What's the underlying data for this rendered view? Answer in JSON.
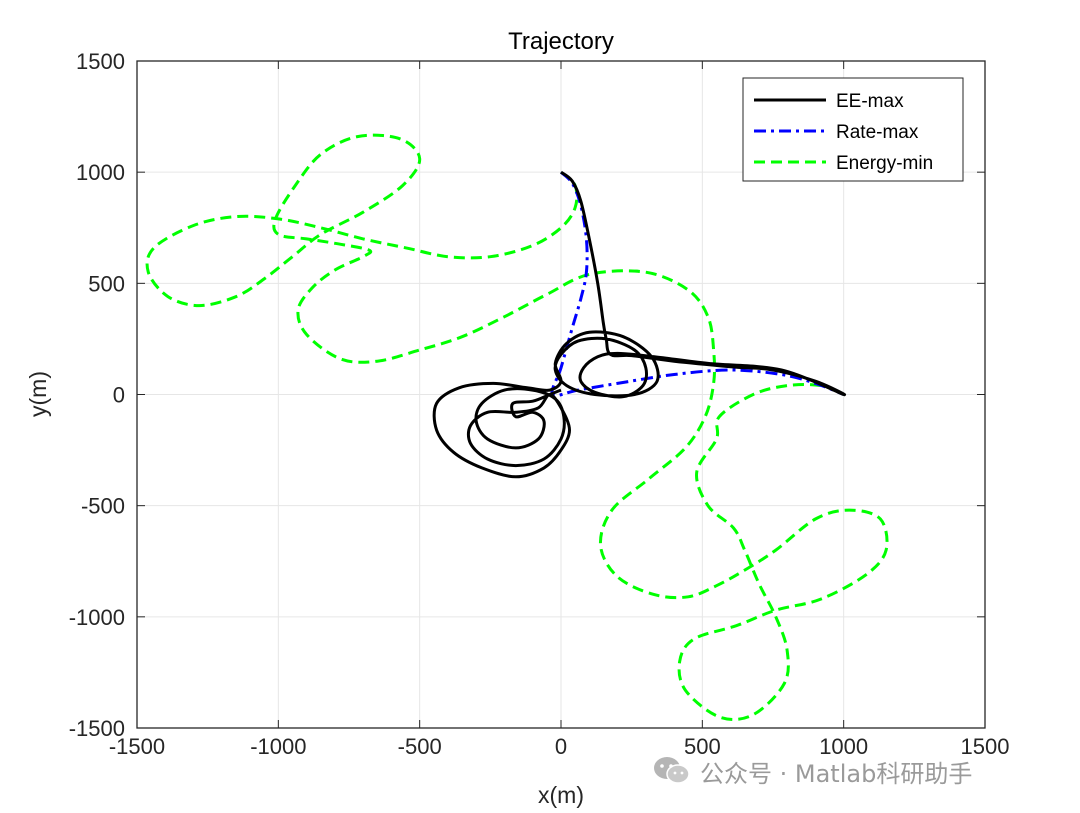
{
  "chart_data": {
    "type": "line",
    "title": "Trajectory",
    "xlabel": "x(m)",
    "ylabel": "y(m)",
    "xlim": [
      -1500,
      1500
    ],
    "ylim": [
      -1500,
      1500
    ],
    "xticks": [
      -1500,
      -1000,
      -500,
      0,
      500,
      1000,
      1500
    ],
    "yticks": [
      -1500,
      -1000,
      -500,
      0,
      500,
      1000,
      1500
    ],
    "grid": true,
    "legend_position": "top-right",
    "series": [
      {
        "name": "EE-max",
        "color": "#000000",
        "style": "solid",
        "points": [
          [
            0,
            1000
          ],
          [
            40,
            960
          ],
          [
            70,
            870
          ],
          [
            100,
            700
          ],
          [
            130,
            500
          ],
          [
            150,
            320
          ],
          [
            160,
            250
          ],
          [
            175,
            180
          ],
          [
            250,
            175
          ],
          [
            400,
            150
          ],
          [
            600,
            125
          ],
          [
            750,
            110
          ],
          [
            900,
            60
          ],
          [
            1000,
            0
          ],
          [
            780,
            110
          ],
          [
            520,
            140
          ],
          [
            330,
            170
          ],
          [
            200,
            185
          ],
          [
            130,
            170
          ],
          [
            80,
            120
          ],
          [
            70,
            60
          ],
          [
            120,
            10
          ],
          [
            220,
            -10
          ],
          [
            290,
            40
          ],
          [
            300,
            120
          ],
          [
            260,
            200
          ],
          [
            160,
            250
          ],
          [
            60,
            240
          ],
          [
            0,
            180
          ],
          [
            -20,
            110
          ],
          [
            20,
            40
          ],
          [
            120,
            0
          ],
          [
            260,
            0
          ],
          [
            340,
            60
          ],
          [
            320,
            170
          ],
          [
            220,
            260
          ],
          [
            100,
            280
          ],
          [
            20,
            230
          ],
          [
            -20,
            140
          ],
          [
            0,
            60
          ],
          [
            -40,
            20
          ],
          [
            -120,
            30
          ],
          [
            -240,
            50
          ],
          [
            -360,
            30
          ],
          [
            -440,
            -40
          ],
          [
            -440,
            -160
          ],
          [
            -380,
            -260
          ],
          [
            -280,
            -330
          ],
          [
            -160,
            -370
          ],
          [
            -60,
            -330
          ],
          [
            0,
            -250
          ],
          [
            30,
            -160
          ],
          [
            0,
            -60
          ],
          [
            -40,
            0
          ],
          [
            -80,
            -60
          ],
          [
            -160,
            -80
          ],
          [
            -260,
            -80
          ],
          [
            -320,
            -140
          ],
          [
            -320,
            -220
          ],
          [
            -260,
            -290
          ],
          [
            -160,
            -320
          ],
          [
            -60,
            -290
          ],
          [
            0,
            -200
          ],
          [
            10,
            -100
          ],
          [
            -20,
            -20
          ],
          [
            -100,
            20
          ],
          [
            -200,
            20
          ],
          [
            -280,
            -40
          ],
          [
            -300,
            -120
          ],
          [
            -260,
            -200
          ],
          [
            -160,
            -240
          ],
          [
            -80,
            -200
          ],
          [
            -60,
            -120
          ],
          [
            -100,
            -80
          ],
          [
            -160,
            -100
          ],
          [
            -170,
            -40
          ],
          [
            -100,
            -30
          ],
          [
            -40,
            0
          ],
          [
            0,
            20
          ]
        ]
      },
      {
        "name": "Rate-max",
        "color": "#0000FF",
        "style": "dashdot",
        "points": [
          [
            0,
            1000
          ],
          [
            40,
            950
          ],
          [
            70,
            850
          ],
          [
            90,
            700
          ],
          [
            90,
            550
          ],
          [
            70,
            430
          ],
          [
            40,
            300
          ],
          [
            0,
            120
          ],
          [
            -30,
            0
          ],
          [
            60,
            20
          ],
          [
            200,
            50
          ],
          [
            400,
            90
          ],
          [
            600,
            110
          ],
          [
            780,
            90
          ],
          [
            900,
            50
          ],
          [
            1000,
            0
          ]
        ]
      },
      {
        "name": "Energy-min",
        "color": "#00FF00",
        "style": "dashed",
        "points": [
          [
            0,
            1000
          ],
          [
            50,
            940
          ],
          [
            50,
            840
          ],
          [
            0,
            750
          ],
          [
            -100,
            670
          ],
          [
            -250,
            620
          ],
          [
            -400,
            620
          ],
          [
            -550,
            660
          ],
          [
            -700,
            700
          ],
          [
            -850,
            750
          ],
          [
            -1000,
            790
          ],
          [
            -1150,
            800
          ],
          [
            -1300,
            760
          ],
          [
            -1440,
            660
          ],
          [
            -1460,
            550
          ],
          [
            -1390,
            440
          ],
          [
            -1280,
            400
          ],
          [
            -1150,
            440
          ],
          [
            -1050,
            520
          ],
          [
            -950,
            620
          ],
          [
            -850,
            720
          ],
          [
            -700,
            820
          ],
          [
            -560,
            940
          ],
          [
            -500,
            1060
          ],
          [
            -570,
            1150
          ],
          [
            -720,
            1160
          ],
          [
            -850,
            1080
          ],
          [
            -940,
            940
          ],
          [
            -1010,
            790
          ],
          [
            -1000,
            720
          ],
          [
            -900,
            700
          ],
          [
            -800,
            680
          ],
          [
            -680,
            650
          ],
          [
            -700,
            620
          ],
          [
            -800,
            560
          ],
          [
            -880,
            480
          ],
          [
            -930,
            380
          ],
          [
            -900,
            270
          ],
          [
            -780,
            160
          ],
          [
            -650,
            150
          ],
          [
            -500,
            200
          ],
          [
            -350,
            260
          ],
          [
            -200,
            350
          ],
          [
            -50,
            450
          ],
          [
            100,
            540
          ],
          [
            300,
            550
          ],
          [
            450,
            470
          ],
          [
            520,
            350
          ],
          [
            540,
            200
          ],
          [
            540,
            50
          ],
          [
            510,
            -100
          ],
          [
            440,
            -240
          ],
          [
            310,
            -380
          ],
          [
            180,
            -520
          ],
          [
            140,
            -680
          ],
          [
            200,
            -820
          ],
          [
            330,
            -900
          ],
          [
            450,
            -910
          ],
          [
            550,
            -860
          ],
          [
            650,
            -790
          ],
          [
            760,
            -700
          ],
          [
            900,
            -560
          ],
          [
            1020,
            -520
          ],
          [
            1130,
            -560
          ],
          [
            1150,
            -700
          ],
          [
            1080,
            -810
          ],
          [
            920,
            -920
          ],
          [
            760,
            -970
          ],
          [
            620,
            -1040
          ],
          [
            470,
            -1100
          ],
          [
            420,
            -1200
          ],
          [
            440,
            -1330
          ],
          [
            560,
            -1450
          ],
          [
            680,
            -1440
          ],
          [
            790,
            -1300
          ],
          [
            800,
            -1150
          ],
          [
            760,
            -1000
          ],
          [
            700,
            -850
          ],
          [
            650,
            -700
          ],
          [
            610,
            -600
          ],
          [
            520,
            -500
          ],
          [
            480,
            -350
          ],
          [
            550,
            -200
          ],
          [
            560,
            -100
          ],
          [
            680,
            0
          ],
          [
            800,
            40
          ],
          [
            920,
            40
          ],
          [
            1000,
            0
          ]
        ]
      }
    ]
  },
  "watermark": {
    "text": "公众号 · Matlab科研助手",
    "icon": "wechat-icon"
  }
}
